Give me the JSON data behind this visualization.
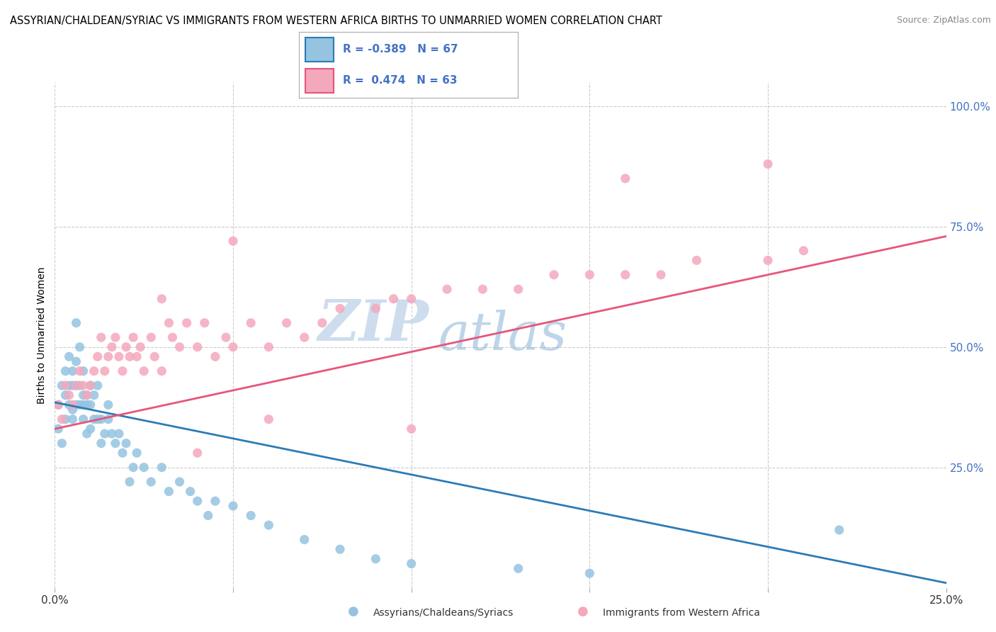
{
  "title": "ASSYRIAN/CHALDEAN/SYRIAC VS IMMIGRANTS FROM WESTERN AFRICA BIRTHS TO UNMARRIED WOMEN CORRELATION CHART",
  "source": "Source: ZipAtlas.com",
  "ylabel": "Births to Unmarried Women",
  "ytick_labels": [
    "",
    "25.0%",
    "50.0%",
    "75.0%",
    "100.0%"
  ],
  "ytick_values": [
    0.0,
    0.25,
    0.5,
    0.75,
    1.0
  ],
  "xlim": [
    0.0,
    0.25
  ],
  "ylim": [
    0.0,
    1.05
  ],
  "blue_R": -0.389,
  "blue_N": 67,
  "pink_R": 0.474,
  "pink_N": 63,
  "blue_color": "#94c4e0",
  "pink_color": "#f4a8bc",
  "blue_line_color": "#2c7bb6",
  "pink_line_color": "#e8547a",
  "legend_label_blue": "Assyrians/Chaldeans/Syriacs",
  "legend_label_pink": "Immigrants from Western Africa",
  "watermark_zip": "ZIP",
  "watermark_atlas": "atlas",
  "background_color": "#ffffff",
  "blue_scatter_x": [
    0.001,
    0.001,
    0.002,
    0.002,
    0.003,
    0.003,
    0.003,
    0.004,
    0.004,
    0.004,
    0.005,
    0.005,
    0.005,
    0.005,
    0.006,
    0.006,
    0.006,
    0.006,
    0.007,
    0.007,
    0.007,
    0.008,
    0.008,
    0.008,
    0.008,
    0.009,
    0.009,
    0.009,
    0.01,
    0.01,
    0.01,
    0.011,
    0.011,
    0.012,
    0.012,
    0.013,
    0.013,
    0.014,
    0.015,
    0.015,
    0.016,
    0.017,
    0.018,
    0.019,
    0.02,
    0.021,
    0.022,
    0.023,
    0.025,
    0.027,
    0.03,
    0.032,
    0.035,
    0.038,
    0.04,
    0.043,
    0.045,
    0.05,
    0.055,
    0.06,
    0.07,
    0.08,
    0.09,
    0.1,
    0.13,
    0.15,
    0.22
  ],
  "blue_scatter_y": [
    0.38,
    0.33,
    0.42,
    0.3,
    0.45,
    0.4,
    0.35,
    0.42,
    0.38,
    0.48,
    0.37,
    0.42,
    0.35,
    0.45,
    0.42,
    0.38,
    0.55,
    0.47,
    0.42,
    0.5,
    0.38,
    0.4,
    0.45,
    0.38,
    0.35,
    0.38,
    0.32,
    0.4,
    0.38,
    0.42,
    0.33,
    0.35,
    0.4,
    0.35,
    0.42,
    0.3,
    0.35,
    0.32,
    0.35,
    0.38,
    0.32,
    0.3,
    0.32,
    0.28,
    0.3,
    0.22,
    0.25,
    0.28,
    0.25,
    0.22,
    0.25,
    0.2,
    0.22,
    0.2,
    0.18,
    0.15,
    0.18,
    0.17,
    0.15,
    0.13,
    0.1,
    0.08,
    0.06,
    0.05,
    0.04,
    0.03,
    0.12
  ],
  "pink_scatter_x": [
    0.001,
    0.002,
    0.003,
    0.004,
    0.005,
    0.006,
    0.007,
    0.008,
    0.009,
    0.01,
    0.011,
    0.012,
    0.013,
    0.014,
    0.015,
    0.016,
    0.017,
    0.018,
    0.019,
    0.02,
    0.021,
    0.022,
    0.023,
    0.024,
    0.025,
    0.027,
    0.028,
    0.03,
    0.032,
    0.033,
    0.035,
    0.037,
    0.04,
    0.042,
    0.045,
    0.048,
    0.05,
    0.055,
    0.06,
    0.065,
    0.07,
    0.075,
    0.08,
    0.09,
    0.095,
    0.1,
    0.11,
    0.12,
    0.13,
    0.14,
    0.15,
    0.16,
    0.17,
    0.18,
    0.2,
    0.21,
    0.04,
    0.06,
    0.1,
    0.2,
    0.03,
    0.05,
    0.16
  ],
  "pink_scatter_y": [
    0.38,
    0.35,
    0.42,
    0.4,
    0.38,
    0.42,
    0.45,
    0.42,
    0.4,
    0.42,
    0.45,
    0.48,
    0.52,
    0.45,
    0.48,
    0.5,
    0.52,
    0.48,
    0.45,
    0.5,
    0.48,
    0.52,
    0.48,
    0.5,
    0.45,
    0.52,
    0.48,
    0.45,
    0.55,
    0.52,
    0.5,
    0.55,
    0.5,
    0.55,
    0.48,
    0.52,
    0.5,
    0.55,
    0.5,
    0.55,
    0.52,
    0.55,
    0.58,
    0.58,
    0.6,
    0.6,
    0.62,
    0.62,
    0.62,
    0.65,
    0.65,
    0.65,
    0.65,
    0.68,
    0.68,
    0.7,
    0.28,
    0.35,
    0.33,
    0.88,
    0.6,
    0.72,
    0.85
  ]
}
